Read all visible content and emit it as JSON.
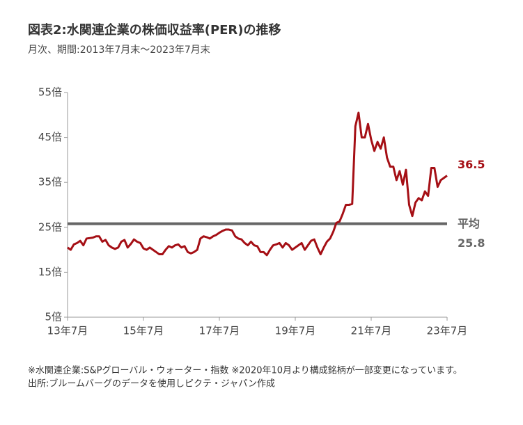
{
  "chart_data": {
    "type": "line",
    "title": "図表2:水関連企業の株価収益率(PER)の推移",
    "subtitle": "月次、期間:2013年7月末〜2023年7月末",
    "categories": [
      "13年7月",
      null,
      null,
      null,
      null,
      null,
      null,
      null,
      null,
      null,
      null,
      null,
      null,
      null,
      null,
      null,
      null,
      null,
      null,
      null,
      null,
      null,
      null,
      null,
      "15年7月",
      null,
      null,
      null,
      null,
      null,
      null,
      null,
      null,
      null,
      null,
      null,
      null,
      null,
      null,
      null,
      null,
      null,
      null,
      null,
      null,
      null,
      null,
      null,
      "17年7月",
      null,
      null,
      null,
      null,
      null,
      null,
      null,
      null,
      null,
      null,
      null,
      null,
      null,
      null,
      null,
      null,
      null,
      null,
      null,
      null,
      null,
      null,
      null,
      "19年7月",
      null,
      null,
      null,
      null,
      null,
      null,
      null,
      null,
      null,
      null,
      null,
      null,
      null,
      null,
      null,
      null,
      null,
      null,
      null,
      null,
      null,
      null,
      null,
      "21年7月",
      null,
      null,
      null,
      null,
      null,
      null,
      null,
      null,
      null,
      null,
      null,
      null,
      null,
      null,
      null,
      null,
      null,
      null,
      null,
      null,
      null,
      null,
      null,
      "23年7月"
    ],
    "series": [
      {
        "name": "水関連企業",
        "color": "#a50f15",
        "values": [
          20.5,
          20.0,
          21.2,
          21.5,
          22.0,
          21.0,
          22.5,
          22.6,
          22.7,
          23.0,
          23.0,
          21.8,
          22.2,
          21.0,
          20.5,
          20.2,
          20.5,
          21.8,
          22.2,
          20.5,
          21.3,
          22.3,
          21.8,
          21.5,
          20.3,
          20.0,
          20.5,
          20.0,
          19.5,
          19.0,
          19.0,
          20.0,
          20.8,
          20.5,
          21.0,
          21.2,
          20.5,
          20.8,
          19.5,
          19.2,
          19.5,
          20.0,
          22.5,
          23.0,
          22.8,
          22.5,
          23.0,
          23.3,
          23.8,
          24.2,
          24.5,
          24.5,
          24.3,
          23.0,
          22.5,
          22.3,
          21.5,
          21.0,
          21.8,
          21.0,
          20.8,
          19.5,
          19.5,
          18.8,
          20.0,
          21.0,
          21.2,
          21.5,
          20.5,
          21.5,
          21.0,
          20.0,
          20.5,
          21.0,
          21.5,
          20.0,
          21.0,
          22.0,
          22.3,
          20.5,
          19.0,
          20.5,
          21.8,
          22.5,
          24.0,
          26.0,
          26.3,
          28.0,
          30.0,
          30.0,
          30.2,
          47.5,
          50.5,
          45.0,
          45.0,
          48.0,
          44.5,
          42.0,
          44.0,
          42.5,
          45.0,
          40.5,
          38.5,
          38.5,
          35.5,
          37.5,
          34.5,
          37.8,
          30.0,
          27.5,
          30.5,
          31.5,
          31.0,
          33.0,
          32.0,
          38.2,
          38.2,
          34.0,
          35.5,
          36.0,
          36.5
        ]
      }
    ],
    "average": {
      "label": "平均",
      "value": 25.8,
      "color": "#666666"
    },
    "ylim": [
      5,
      55
    ],
    "yticks": [
      {
        "value": 5,
        "label": "5倍"
      },
      {
        "value": 15,
        "label": "15倍"
      },
      {
        "value": 25,
        "label": "25倍"
      },
      {
        "value": 35,
        "label": "35倍"
      },
      {
        "value": 45,
        "label": "45倍"
      },
      {
        "value": 55,
        "label": "55倍"
      }
    ],
    "grid": false,
    "notes": [
      "※水関連企業:S&Pグローバル・ウォーター・指数 ※2020年10月より構成銘柄が一部変更になっています。",
      "出所:ブルームバーグのデータを使用しピクテ・ジャパン作成"
    ]
  }
}
